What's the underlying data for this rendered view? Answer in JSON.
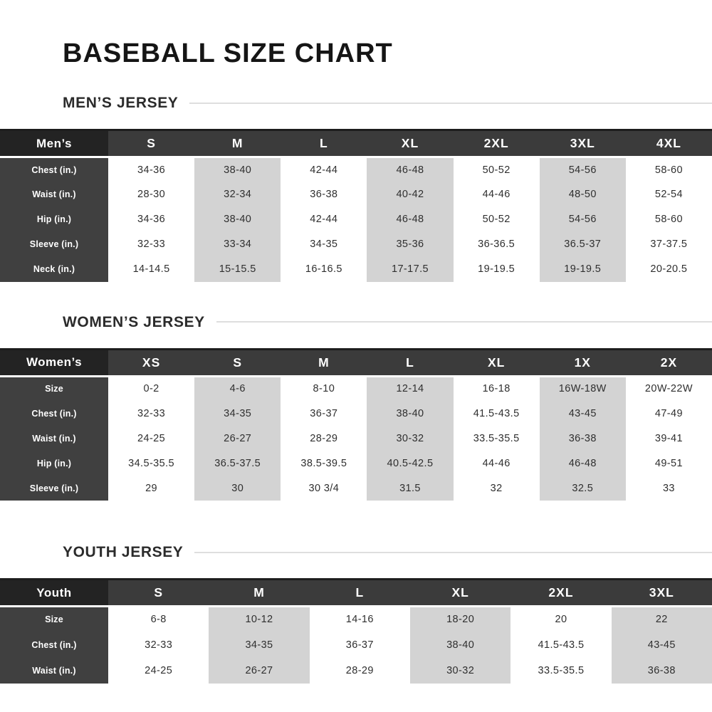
{
  "title": "BASEBALL SIZE CHART",
  "colors": {
    "header_dark": "#3b3b3b",
    "corner_dark": "#232323",
    "label_column_dark": "#404040",
    "stripe_gray": "#d3d3d3",
    "heading_rule_gray": "#dedede",
    "text_dark": "#2f2f2f"
  },
  "sections": [
    {
      "id": "men",
      "heading": "MEN’S JERSEY",
      "corner": "Men’s",
      "sizes": [
        "S",
        "M",
        "L",
        "XL",
        "2XL",
        "3XL",
        "4XL"
      ],
      "rows": [
        {
          "label": "Chest (in.)",
          "values": [
            "34-36",
            "38-40",
            "42-44",
            "46-48",
            "50-52",
            "54-56",
            "58-60"
          ]
        },
        {
          "label": "Waist (in.)",
          "values": [
            "28-30",
            "32-34",
            "36-38",
            "40-42",
            "44-46",
            "48-50",
            "52-54"
          ]
        },
        {
          "label": "Hip (in.)",
          "values": [
            "34-36",
            "38-40",
            "42-44",
            "46-48",
            "50-52",
            "54-56",
            "58-60"
          ]
        },
        {
          "label": "Sleeve (in.)",
          "values": [
            "32-33",
            "33-34",
            "34-35",
            "35-36",
            "36-36.5",
            "36.5-37",
            "37-37.5"
          ]
        },
        {
          "label": "Neck (in.)",
          "values": [
            "14-14.5",
            "15-15.5",
            "16-16.5",
            "17-17.5",
            "19-19.5",
            "19-19.5",
            "20-20.5"
          ]
        }
      ]
    },
    {
      "id": "women",
      "heading": "WOMEN’S JERSEY",
      "corner": "Women’s",
      "sizes": [
        "XS",
        "S",
        "M",
        "L",
        "XL",
        "1X",
        "2X"
      ],
      "rows": [
        {
          "label": "Size",
          "values": [
            "0-2",
            "4-6",
            "8-10",
            "12-14",
            "16-18",
            "16W-18W",
            "20W-22W"
          ]
        },
        {
          "label": "Chest (in.)",
          "values": [
            "32-33",
            "34-35",
            "36-37",
            "38-40",
            "41.5-43.5",
            "43-45",
            "47-49"
          ]
        },
        {
          "label": "Waist (in.)",
          "values": [
            "24-25",
            "26-27",
            "28-29",
            "30-32",
            "33.5-35.5",
            "36-38",
            "39-41"
          ]
        },
        {
          "label": "Hip (in.)",
          "values": [
            "34.5-35.5",
            "36.5-37.5",
            "38.5-39.5",
            "40.5-42.5",
            "44-46",
            "46-48",
            "49-51"
          ]
        },
        {
          "label": "Sleeve (in.)",
          "values": [
            "29",
            "30",
            "30 3/4",
            "31.5",
            "32",
            "32.5",
            "33"
          ]
        }
      ]
    },
    {
      "id": "youth",
      "heading": "YOUTH JERSEY",
      "corner": "Youth",
      "sizes": [
        "S",
        "M",
        "L",
        "XL",
        "2XL",
        "3XL"
      ],
      "rows": [
        {
          "label": "Size",
          "values": [
            "6-8",
            "10-12",
            "14-16",
            "18-20",
            "20",
            "22"
          ]
        },
        {
          "label": "Chest (in.)",
          "values": [
            "32-33",
            "34-35",
            "36-37",
            "38-40",
            "41.5-43.5",
            "43-45"
          ]
        },
        {
          "label": "Waist (in.)",
          "values": [
            "24-25",
            "26-27",
            "28-29",
            "30-32",
            "33.5-35.5",
            "36-38"
          ]
        }
      ]
    }
  ]
}
